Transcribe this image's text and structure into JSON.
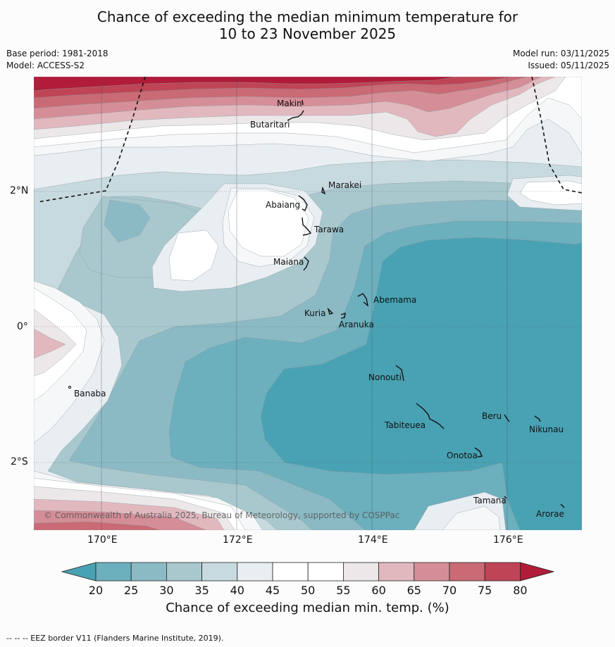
{
  "title_line1": "Chance of exceeding the median minimum temperature for",
  "title_line2": "10 to 23 November 2025",
  "base_period": "Base period: 1981-2018",
  "model": "Model: ACCESS-S2",
  "model_run": "Model run: 03/11/2025",
  "issued": "Issued: 05/11/2025",
  "copyright": "© Commonwealth of Australia 2025, Bureau of Meteorology, supported by COSPPac",
  "lat_labels": [
    "2°N",
    "0°",
    "2°S"
  ],
  "lon_labels": [
    "170°E",
    "172°E",
    "174°E",
    "176°E"
  ],
  "places": {
    "makin": "Makin",
    "butaritari": "Butaritari",
    "marakei": "Marakei",
    "abaiang": "Abaiang",
    "tarawa": "Tarawa",
    "maiana": "Maiana",
    "abemama": "Abemama",
    "kuria": "Kuria",
    "aranuka": "Aranuka",
    "nonouti": "Nonouti",
    "banaba": "Banaba",
    "beru": "Beru",
    "nikunau": "Nikunau",
    "tabiteuea": "Tabiteuea",
    "onotoa": "Onotoa",
    "tamana": "Tamana",
    "arorae": "Arorae"
  },
  "colorbar": {
    "ticks": [
      "20",
      "25",
      "30",
      "35",
      "40",
      "45",
      "50",
      "55",
      "60",
      "65",
      "70",
      "75",
      "80"
    ],
    "colors": {
      "c15": "#49a2b3",
      "c20": "#6cafbd",
      "c25": "#8bbac5",
      "c30": "#a8c8ce",
      "c35": "#c7dadf",
      "c40": "#e8eef1",
      "c45": "#f6f7f8",
      "c50": "#ffffff",
      "c55": "#ece8ea",
      "c60": "#e2b8bf",
      "c65": "#d58e97",
      "c70": "#c96a74",
      "c75": "#bf4556",
      "c80": "#b01c39"
    }
  },
  "colorbar_title": "Chance of exceeding median min. temp. (%)",
  "footer": "--  --  -- EEZ border V11 (Flanders Marine Institute, 2019)."
}
